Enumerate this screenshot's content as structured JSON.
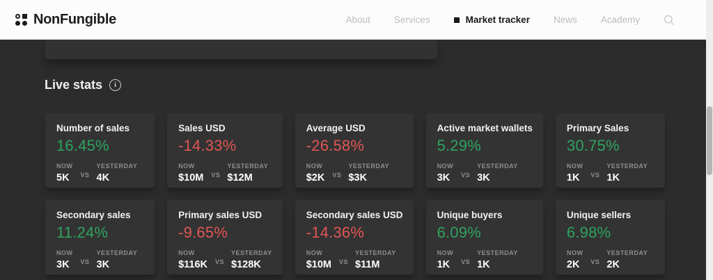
{
  "header": {
    "logo_text": "NonFungible",
    "nav": [
      {
        "label": "About",
        "active": false
      },
      {
        "label": "Services",
        "active": false
      },
      {
        "label": "Market tracker",
        "active": true
      },
      {
        "label": "News",
        "active": false
      },
      {
        "label": "Academy",
        "active": false
      }
    ]
  },
  "section": {
    "title": "Live stats"
  },
  "labels": {
    "now": "NOW",
    "vs": "VS",
    "yesterday": "YESTERDAY"
  },
  "colors": {
    "positive": "#2fa35f",
    "negative": "#e25555",
    "page_bg": "#2c2c2c",
    "card_bg": "#333333",
    "header_bg": "#fcfcfc"
  },
  "stats": [
    {
      "title": "Number of sales",
      "change": "16.45%",
      "direction": "up",
      "now": "5K",
      "yesterday": "4K"
    },
    {
      "title": "Sales USD",
      "change": "-14.33%",
      "direction": "down",
      "now": "$10M",
      "yesterday": "$12M"
    },
    {
      "title": "Average USD",
      "change": "-26.58%",
      "direction": "down",
      "now": "$2K",
      "yesterday": "$3K"
    },
    {
      "title": "Active market wallets",
      "change": "5.29%",
      "direction": "up",
      "now": "3K",
      "yesterday": "3K"
    },
    {
      "title": "Primary Sales",
      "change": "30.75%",
      "direction": "up",
      "now": "1K",
      "yesterday": "1K"
    },
    {
      "title": "Secondary sales",
      "change": "11.24%",
      "direction": "up",
      "now": "3K",
      "yesterday": "3K"
    },
    {
      "title": "Primary sales USD",
      "change": "-9.65%",
      "direction": "down",
      "now": "$116K",
      "yesterday": "$128K"
    },
    {
      "title": "Secondary sales USD",
      "change": "-14.36%",
      "direction": "down",
      "now": "$10M",
      "yesterday": "$11M"
    },
    {
      "title": "Unique buyers",
      "change": "6.09%",
      "direction": "up",
      "now": "1K",
      "yesterday": "1K"
    },
    {
      "title": "Unique sellers",
      "change": "6.98%",
      "direction": "up",
      "now": "2K",
      "yesterday": "2K"
    }
  ]
}
